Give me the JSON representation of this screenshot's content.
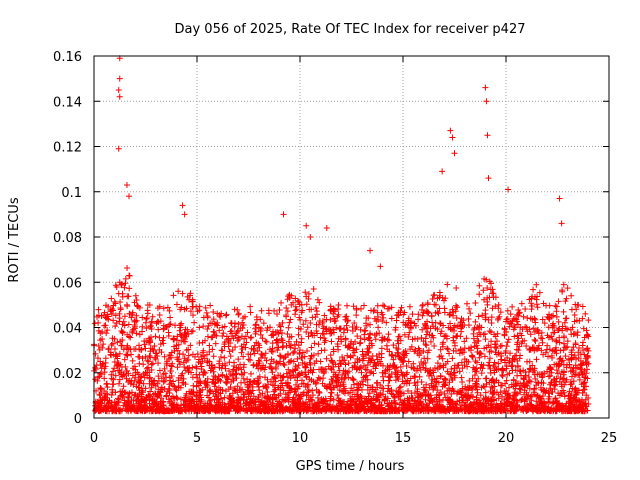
{
  "chart_data": {
    "type": "scatter",
    "title": "Day 056 of 2025, Rate Of TEC Index for receiver p427",
    "xlabel": "GPS time / hours",
    "ylabel": "ROTI / TECUs",
    "xlim": [
      0,
      25
    ],
    "ylim": [
      0,
      0.16
    ],
    "xticks": [
      0,
      5,
      10,
      15,
      20,
      25
    ],
    "xtick_labels": [
      "0",
      "5",
      "10",
      "15",
      "20",
      "25"
    ],
    "yticks": [
      0,
      0.02,
      0.04,
      0.06,
      0.08,
      0.1,
      0.12,
      0.14,
      0.16
    ],
    "ytick_labels": [
      "0",
      "0.02",
      "0.04",
      "0.06",
      "0.08",
      "0.1",
      "0.12",
      "0.14",
      "0.16"
    ],
    "grid": true,
    "marker": "plus",
    "color": "#ff0000",
    "series": [
      {
        "name": "ROTI",
        "x": [
          0.1,
          0.2,
          0.3,
          0.4,
          0.5,
          0.6,
          0.8,
          1.0,
          1.1,
          1.2,
          1.25,
          1.3,
          1.4,
          1.5,
          1.6,
          1.7,
          1.8,
          1.9,
          2.0,
          2.2,
          2.5,
          2.8,
          3.0,
          3.2,
          3.5,
          3.8,
          4.0,
          4.2,
          4.3,
          4.4,
          4.5,
          4.6,
          4.8,
          5.0,
          5.3,
          5.6,
          5.9,
          6.2,
          6.5,
          6.8,
          7.0,
          7.3,
          7.6,
          7.8,
          8.0,
          8.3,
          8.6,
          8.9,
          9.1,
          9.3,
          9.5,
          9.7,
          10.0,
          10.3,
          10.5,
          10.7,
          11.0,
          11.2,
          11.5,
          11.8,
          12.0,
          12.3,
          12.6,
          12.9,
          13.2,
          13.5,
          13.8,
          14.0,
          14.3,
          14.6,
          14.9,
          15.2,
          15.5,
          15.8,
          16.0,
          16.2,
          16.4,
          16.6,
          16.8,
          17.0,
          17.2,
          17.4,
          17.6,
          17.8,
          18.0,
          18.3,
          18.6,
          18.8,
          19.0,
          19.1,
          19.3,
          19.5,
          19.8,
          20.0,
          20.2,
          20.4,
          20.6,
          20.8,
          21.0,
          21.2,
          21.4,
          21.6,
          21.8,
          22.0,
          22.2,
          22.4,
          22.6,
          22.8,
          23.0,
          23.2,
          23.4,
          23.6,
          23.8,
          24.0,
          1.2,
          1.2,
          1.25,
          1.25,
          1.25,
          1.6,
          1.7,
          4.3,
          4.4,
          9.2,
          10.3,
          10.5,
          11.3,
          13.4,
          13.9,
          16.9,
          17.3,
          17.4,
          17.5,
          19.0,
          19.05,
          19.1,
          19.15,
          20.1,
          22.6,
          22.7
        ],
        "y": [
          0.012,
          0.018,
          0.025,
          0.031,
          0.022,
          0.015,
          0.028,
          0.035,
          0.042,
          0.055,
          0.06,
          0.048,
          0.038,
          0.045,
          0.05,
          0.036,
          0.028,
          0.022,
          0.018,
          0.024,
          0.02,
          0.016,
          0.026,
          0.021,
          0.018,
          0.024,
          0.032,
          0.04,
          0.055,
          0.048,
          0.03,
          0.022,
          0.018,
          0.016,
          0.02,
          0.025,
          0.018,
          0.022,
          0.017,
          0.023,
          0.026,
          0.02,
          0.028,
          0.032,
          0.024,
          0.018,
          0.022,
          0.03,
          0.035,
          0.027,
          0.02,
          0.025,
          0.03,
          0.038,
          0.042,
          0.033,
          0.025,
          0.03,
          0.022,
          0.018,
          0.024,
          0.02,
          0.017,
          0.022,
          0.028,
          0.032,
          0.024,
          0.02,
          0.018,
          0.022,
          0.026,
          0.02,
          0.024,
          0.03,
          0.034,
          0.038,
          0.045,
          0.05,
          0.042,
          0.036,
          0.04,
          0.048,
          0.036,
          0.03,
          0.026,
          0.03,
          0.034,
          0.04,
          0.046,
          0.05,
          0.042,
          0.036,
          0.032,
          0.038,
          0.042,
          0.036,
          0.03,
          0.034,
          0.04,
          0.044,
          0.038,
          0.032,
          0.028,
          0.032,
          0.036,
          0.03,
          0.026,
          0.03,
          0.034,
          0.03,
          0.026,
          0.022,
          0.028,
          0.024,
          0.119,
          0.145,
          0.142,
          0.15,
          0.159,
          0.103,
          0.098,
          0.094,
          0.09,
          0.09,
          0.085,
          0.08,
          0.084,
          0.074,
          0.067,
          0.109,
          0.127,
          0.124,
          0.117,
          0.146,
          0.14,
          0.125,
          0.106,
          0.101,
          0.097,
          0.086
        ],
        "dense_band": {
          "x_range": [
            0,
            24
          ],
          "y_range": [
            0.003,
            0.05
          ],
          "description": "dense scatter of points throughout the day"
        }
      }
    ]
  }
}
